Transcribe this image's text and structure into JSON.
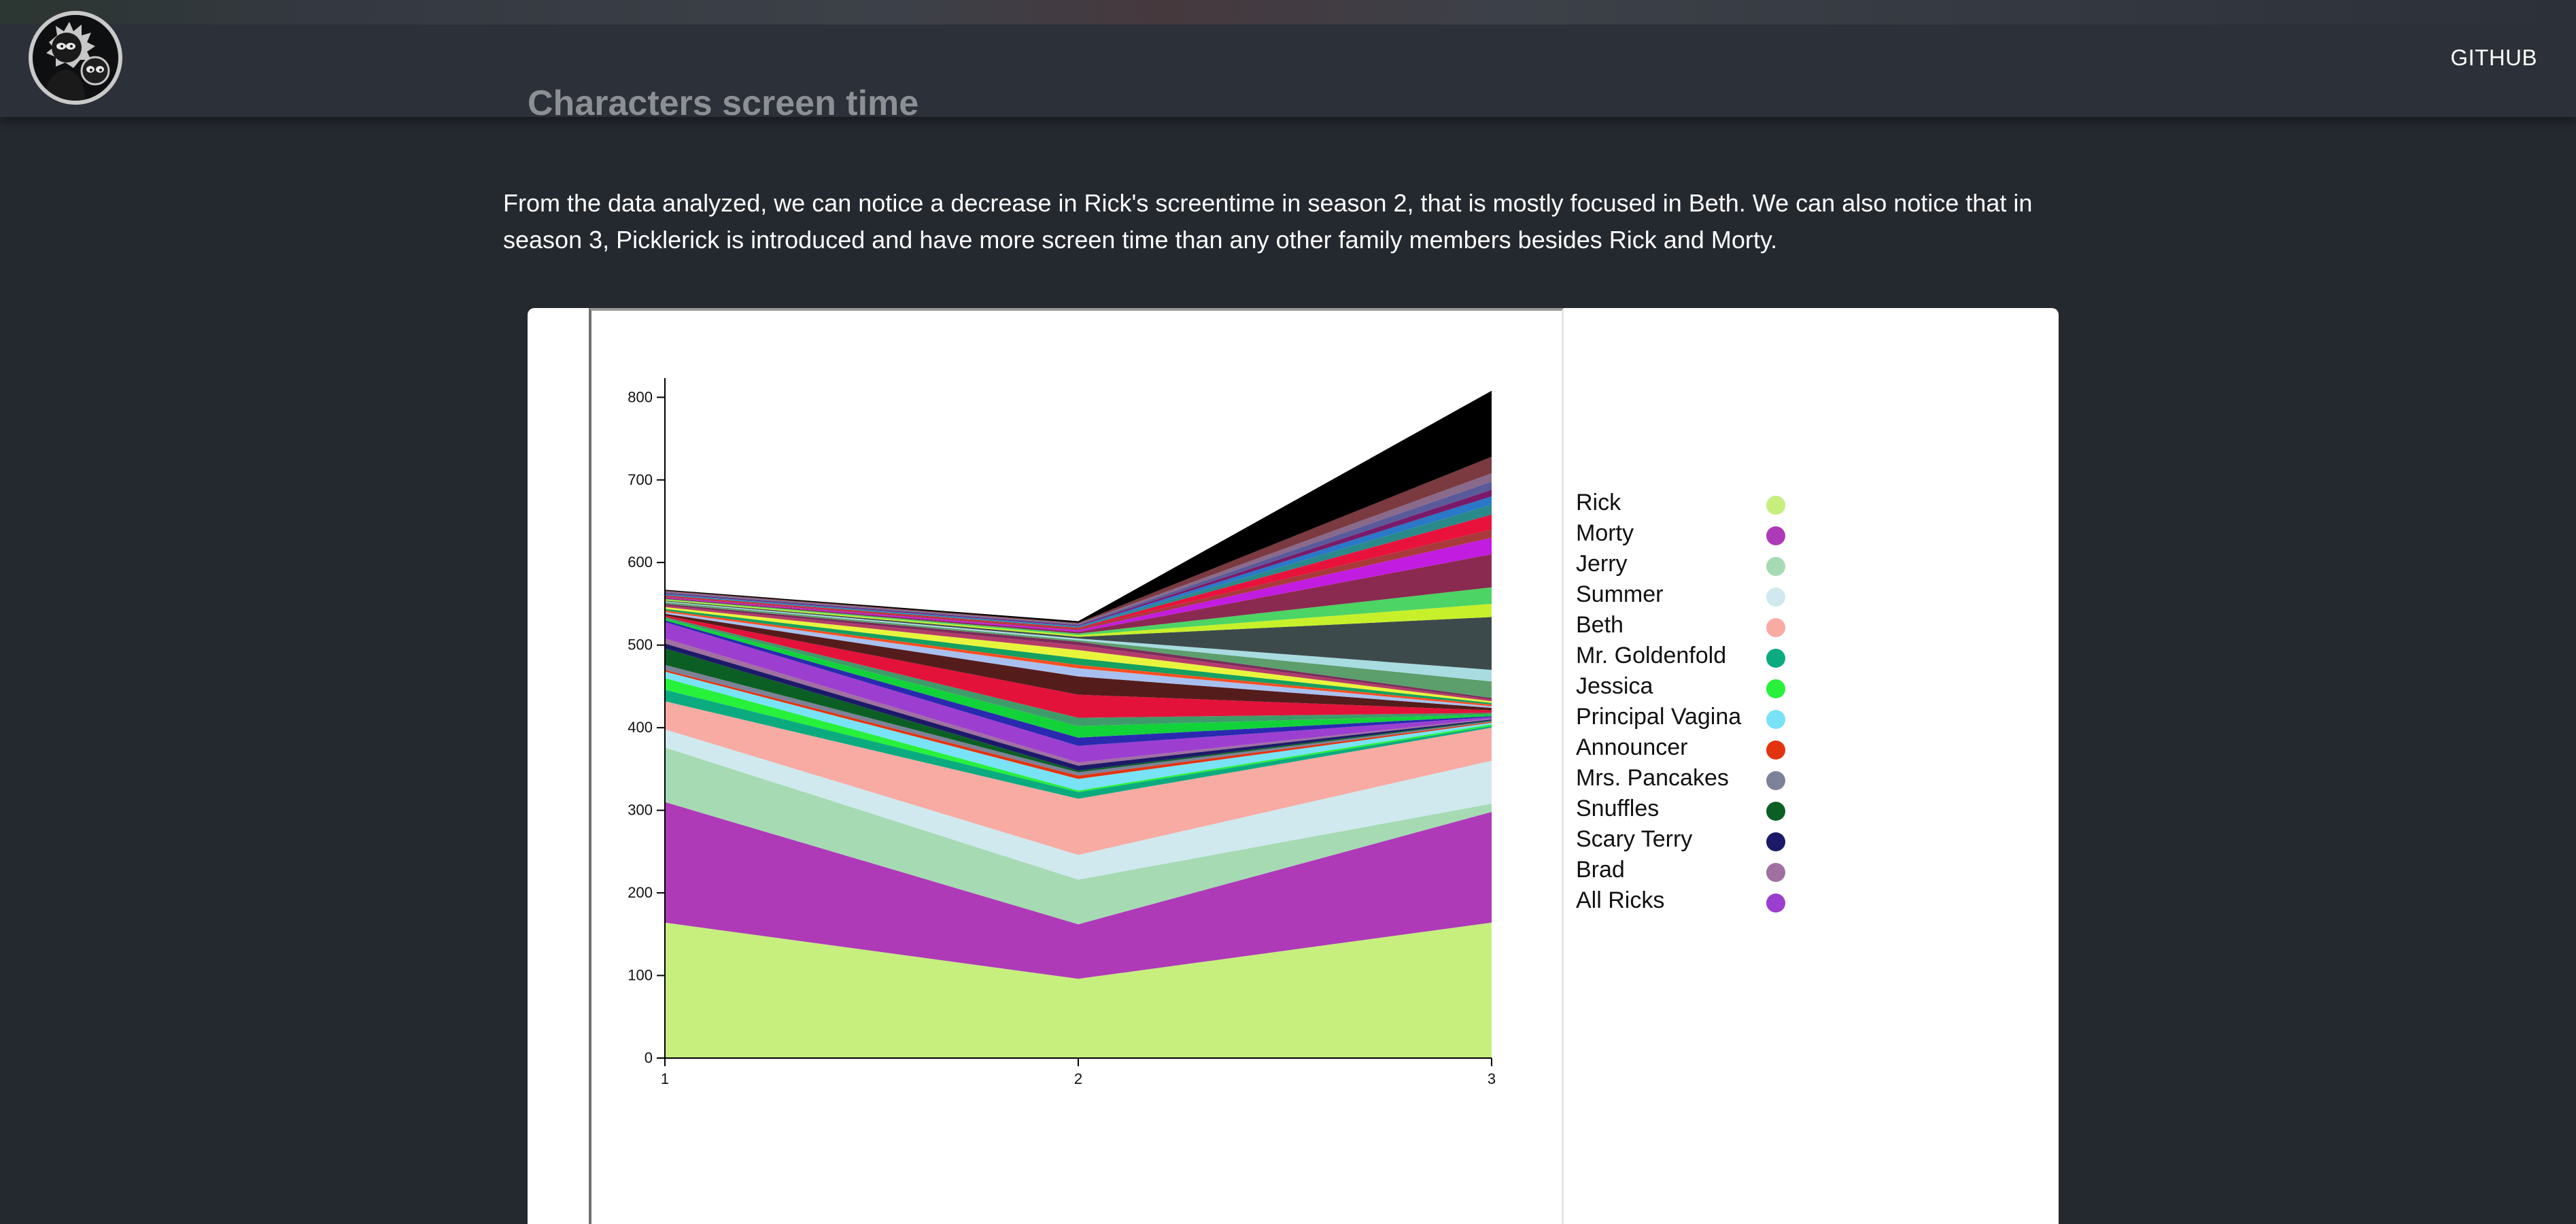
{
  "nav": {
    "github_label": "GITHUB"
  },
  "page": {
    "title": "Characters screen time",
    "intro": "From the data analyzed, we can notice a decrease in Rick's screentime in season 2, that is mostly focused in Beth. We can also notice that in season 3, Picklerick is introduced and have more screen time than any other family members besides Rick and Morty."
  },
  "chart_data": {
    "type": "area",
    "title": "",
    "xlabel": "",
    "ylabel": "",
    "x": [
      1,
      2,
      3
    ],
    "ylim": [
      0,
      820
    ],
    "yticks": [
      0,
      100,
      200,
      300,
      400,
      500,
      600,
      700,
      800
    ],
    "legend_placement": "right",
    "grid": false,
    "series": [
      {
        "name": "Rick",
        "color": "#c6ef7e",
        "values": [
          164,
          96,
          164
        ]
      },
      {
        "name": "Morty",
        "color": "#ae3ab8",
        "values": [
          146,
          66,
          134
        ]
      },
      {
        "name": "Jerry",
        "color": "#a6dab3",
        "values": [
          66,
          54,
          10
        ]
      },
      {
        "name": "Summer",
        "color": "#cfe9ee",
        "values": [
          22,
          30,
          52
        ]
      },
      {
        "name": "Beth",
        "color": "#f7aba3",
        "values": [
          34,
          68,
          40
        ]
      },
      {
        "name": "Mr. Goldenfold",
        "color": "#0bab7f",
        "values": [
          14,
          8,
          2
        ]
      },
      {
        "name": "Jessica",
        "color": "#27f13b",
        "values": [
          14,
          2,
          2
        ]
      },
      {
        "name": "Principal Vagina",
        "color": "#79e2f6",
        "values": [
          8,
          14,
          2
        ]
      },
      {
        "name": "Announcer",
        "color": "#e3340f",
        "values": [
          2,
          4,
          1
        ]
      },
      {
        "name": "Mrs. Pancakes",
        "color": "#7d8298",
        "values": [
          6,
          4,
          1
        ]
      },
      {
        "name": "Snuffles",
        "color": "#0c5f24",
        "values": [
          20,
          2,
          1
        ]
      },
      {
        "name": "Scary Terry",
        "color": "#1c1a68",
        "values": [
          6,
          6,
          1
        ]
      },
      {
        "name": "Brad",
        "color": "#a070a0",
        "values": [
          6,
          4,
          1
        ]
      },
      {
        "name": "All Ricks",
        "color": "#9c3fd0",
        "values": [
          20,
          20,
          2
        ]
      },
      {
        "color": "#2a2ab0",
        "values": [
          2,
          10,
          1
        ]
      },
      {
        "color": "#12d23a",
        "values": [
          2,
          14,
          2
        ]
      },
      {
        "color": "#3e9c6a",
        "values": [
          2,
          10,
          2
        ]
      },
      {
        "color": "#e3123a",
        "values": [
          2,
          28,
          3
        ]
      },
      {
        "color": "#551c1c",
        "values": [
          2,
          22,
          3
        ]
      },
      {
        "color": "#a8c0ef",
        "values": [
          2,
          10,
          2
        ]
      },
      {
        "color": "#ff4d20",
        "values": [
          2,
          4,
          2
        ]
      },
      {
        "color": "#14a060",
        "values": [
          2,
          8,
          2
        ]
      },
      {
        "color": "#e8f53c",
        "values": [
          2,
          10,
          2
        ]
      },
      {
        "color": "#b43c6a",
        "values": [
          2,
          6,
          2
        ]
      },
      {
        "color": "#7a2c5a",
        "values": [
          2,
          4,
          2
        ]
      },
      {
        "color": "#5c9e6c",
        "values": [
          2,
          2,
          20
        ]
      },
      {
        "color": "#a8dce0",
        "values": [
          1,
          2,
          14
        ]
      },
      {
        "color": "#3d4a4c",
        "values": [
          1,
          2,
          64
        ]
      },
      {
        "color": "#c8f02a",
        "values": [
          1,
          2,
          16
        ]
      },
      {
        "color": "#4cd464",
        "values": [
          1,
          2,
          20
        ]
      },
      {
        "color": "#8a2a50",
        "values": [
          1,
          2,
          40
        ]
      },
      {
        "color": "#c21ce0",
        "values": [
          1,
          2,
          20
        ]
      },
      {
        "color": "#a83a3a",
        "values": [
          1,
          2,
          10
        ]
      },
      {
        "color": "#e8123c",
        "values": [
          1,
          1,
          18
        ]
      },
      {
        "color": "#2a8a8a",
        "values": [
          1,
          1,
          12
        ]
      },
      {
        "color": "#2a78c8",
        "values": [
          1,
          1,
          10
        ]
      },
      {
        "color": "#7a1a6a",
        "values": [
          1,
          1,
          8
        ]
      },
      {
        "color": "#5a5a9a",
        "values": [
          1,
          1,
          10
        ]
      },
      {
        "color": "#8a6a8a",
        "values": [
          1,
          1,
          10
        ]
      },
      {
        "color": "#7a3a40",
        "values": [
          1,
          1,
          20
        ]
      },
      {
        "color": "#000000",
        "values": [
          1,
          2,
          80
        ]
      }
    ]
  }
}
